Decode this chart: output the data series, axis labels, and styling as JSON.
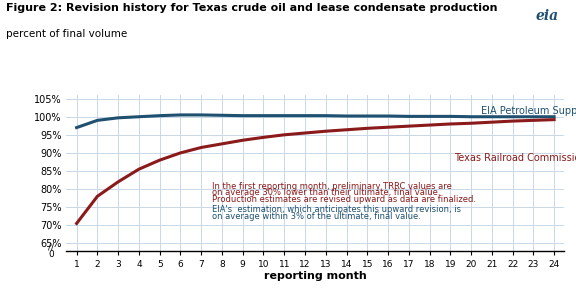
{
  "title": "Figure 2: Revision history for Texas crude oil and lease condensate production",
  "subtitle": "percent of final volume",
  "xlabel": "reporting month",
  "x_months": [
    1,
    2,
    3,
    4,
    5,
    6,
    7,
    8,
    9,
    10,
    11,
    12,
    13,
    14,
    15,
    16,
    17,
    18,
    19,
    20,
    21,
    22,
    23,
    24
  ],
  "eia_values": [
    97.0,
    99.0,
    99.7,
    100.0,
    100.3,
    100.5,
    100.5,
    100.4,
    100.3,
    100.3,
    100.3,
    100.3,
    100.3,
    100.2,
    100.2,
    100.2,
    100.1,
    100.1,
    100.1,
    100.0,
    100.0,
    100.0,
    100.0,
    100.0
  ],
  "trrc_values": [
    70.5,
    78.0,
    82.0,
    85.5,
    88.0,
    90.0,
    91.5,
    92.5,
    93.5,
    94.3,
    95.0,
    95.5,
    96.0,
    96.4,
    96.8,
    97.1,
    97.4,
    97.7,
    98.0,
    98.2,
    98.5,
    98.8,
    99.0,
    99.2
  ],
  "eia_color": "#1f5070",
  "trrc_color": "#8B1A1A",
  "eia_label": "EIA Petroleum Supply Monthly",
  "trrc_label": "Texas Railroad Commission",
  "trrc_annotation_line1": "In the first reporting month, preliminary TRRC values are",
  "trrc_annotation_line2": "on average 30% lower than their ultimate, final value.",
  "trrc_annotation_line3": "Production estimates are revised upward as data are finalized.",
  "eia_annotation_line1": "EIA's  estimation, which anticipates this upward revision, is",
  "eia_annotation_line2": "on average within 3% of the ultimate, final value.",
  "bg_color": "#ffffff",
  "grid_color": "#c8d8e8",
  "line_width": 2.2
}
